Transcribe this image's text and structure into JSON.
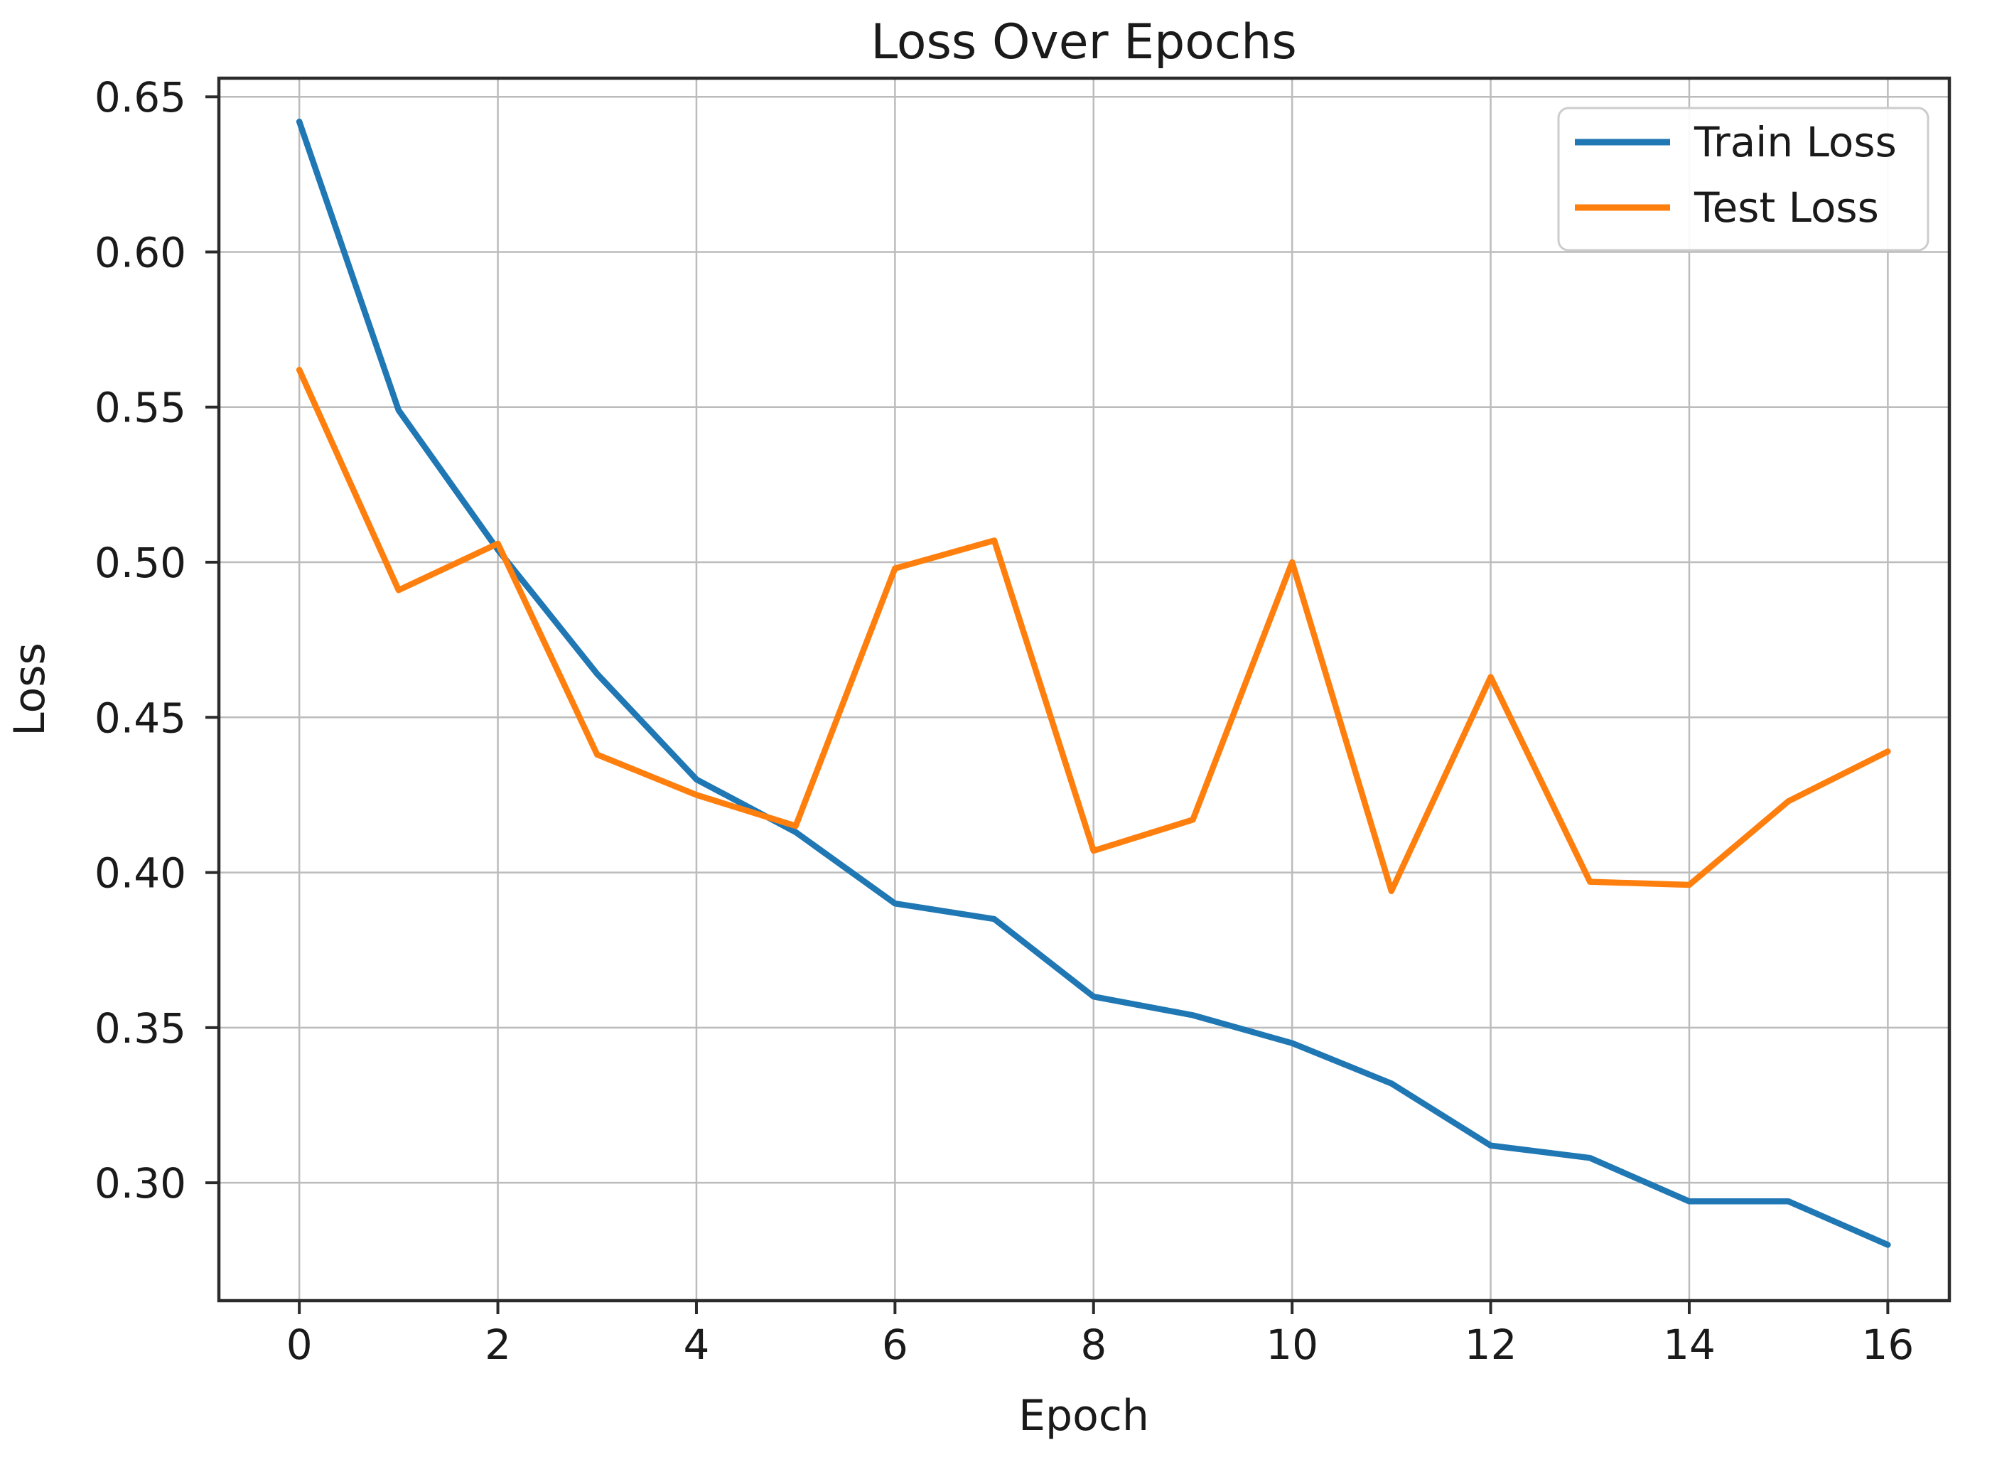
{
  "figure": {
    "background": "#ffffff",
    "text_color": "#1a1a1a",
    "grid_color": "#bcbcbc",
    "spine_color": "#2b2b2b",
    "legend_border_color": "#cccccc",
    "legend_fill": "#ffffff"
  },
  "chart_data": {
    "type": "line",
    "title": "Loss Over Epochs",
    "xlabel": "Epoch",
    "ylabel": "Loss",
    "grid": true,
    "legend_position": "upper right",
    "x": [
      0,
      1,
      2,
      3,
      4,
      5,
      6,
      7,
      8,
      9,
      10,
      11,
      12,
      13,
      14,
      15,
      16
    ],
    "series": [
      {
        "name": "Train Loss",
        "color": "#1f77b4",
        "values": [
          0.642,
          0.549,
          0.504,
          0.464,
          0.43,
          0.413,
          0.39,
          0.385,
          0.36,
          0.354,
          0.345,
          0.332,
          0.312,
          0.308,
          0.294,
          0.294,
          0.28
        ]
      },
      {
        "name": "Test Loss",
        "color": "#ff7f0e",
        "values": [
          0.562,
          0.491,
          0.506,
          0.438,
          0.425,
          0.415,
          0.498,
          0.507,
          0.407,
          0.417,
          0.5,
          0.394,
          0.463,
          0.397,
          0.396,
          0.423,
          0.439
        ]
      }
    ],
    "x_ticks": {
      "values": [
        0,
        2,
        4,
        6,
        8,
        10,
        12,
        14,
        16
      ],
      "labels": [
        "0",
        "2",
        "4",
        "6",
        "8",
        "10",
        "12",
        "14",
        "16"
      ]
    },
    "y_ticks": {
      "values": [
        0.3,
        0.35,
        0.4,
        0.45,
        0.5,
        0.55,
        0.6,
        0.65
      ],
      "labels": [
        "0.30",
        "0.35",
        "0.40",
        "0.45",
        "0.50",
        "0.55",
        "0.60",
        "0.65"
      ]
    },
    "xlim": [
      -0.81,
      16.62
    ],
    "ylim": [
      0.262,
      0.656
    ]
  }
}
